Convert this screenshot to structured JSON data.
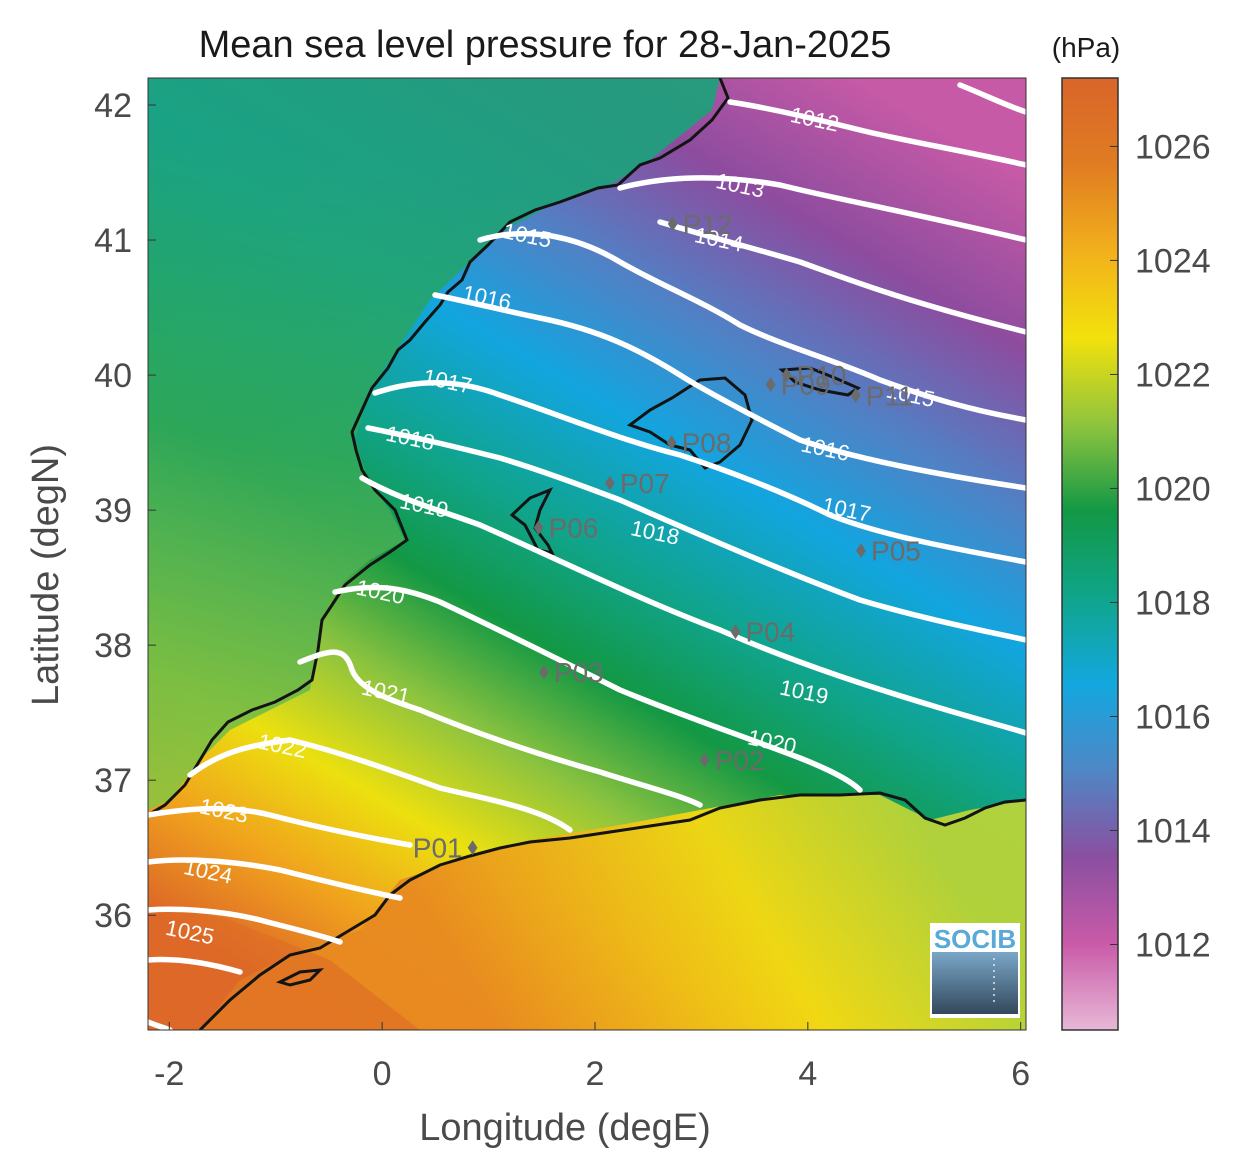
{
  "title": "Mean sea level pressure for 28-Jan-2025",
  "xlabel": "Longitude (degE)",
  "ylabel": "Latitude (degN)",
  "x_ticks": [
    "-2",
    "0",
    "2",
    "4",
    "6"
  ],
  "y_ticks": [
    "42",
    "41",
    "40",
    "39",
    "38",
    "37",
    "36"
  ],
  "colorbar": {
    "unit": "(hPa)",
    "ticks": [
      "1026",
      "1024",
      "1022",
      "1020",
      "1018",
      "1016",
      "1014",
      "1012"
    ],
    "range": [
      1010.5,
      1027.2
    ],
    "colors": [
      "#e8b8d6",
      "#c95aa8",
      "#8a4fa0",
      "#4f87c6",
      "#13a7df",
      "#10a58a",
      "#129845",
      "#8fc43e",
      "#f2e10c",
      "#f2b01c",
      "#e07c22",
      "#d9652a"
    ]
  },
  "logo_text": "SOCIB",
  "chart_data": {
    "type": "contour_map",
    "variable": "Mean sea level pressure",
    "units": "hPa",
    "xlim": [
      -2.2,
      6.05
    ],
    "ylim": [
      35.15,
      42.2
    ],
    "contour_labels": [
      {
        "value": "1012",
        "lon": 4.05,
        "lat": 41.84
      },
      {
        "value": "1013",
        "lon": 3.35,
        "lat": 41.35
      },
      {
        "value": "1014",
        "lon": 3.15,
        "lat": 40.95
      },
      {
        "value": "1015",
        "lon": 1.35,
        "lat": 40.98
      },
      {
        "value": "1015",
        "lon": 4.95,
        "lat": 39.8
      },
      {
        "value": "1016",
        "lon": 0.97,
        "lat": 40.52
      },
      {
        "value": "1016",
        "lon": 4.15,
        "lat": 39.4
      },
      {
        "value": "1017",
        "lon": 0.6,
        "lat": 39.9
      },
      {
        "value": "1017",
        "lon": 4.35,
        "lat": 38.95
      },
      {
        "value": "1018",
        "lon": 0.25,
        "lat": 39.48
      },
      {
        "value": "1018",
        "lon": 2.55,
        "lat": 38.78
      },
      {
        "value": "1019",
        "lon": 0.38,
        "lat": 38.98
      },
      {
        "value": "1019",
        "lon": 3.95,
        "lat": 37.6
      },
      {
        "value": "1020",
        "lon": -0.03,
        "lat": 38.34
      },
      {
        "value": "1020",
        "lon": 3.65,
        "lat": 37.23
      },
      {
        "value": "1021",
        "lon": 0.02,
        "lat": 37.6
      },
      {
        "value": "1022",
        "lon": -0.95,
        "lat": 37.2
      },
      {
        "value": "1023",
        "lon": -1.5,
        "lat": 36.72
      },
      {
        "value": "1024",
        "lon": -1.65,
        "lat": 36.27
      },
      {
        "value": "1025",
        "lon": -1.82,
        "lat": 35.82
      }
    ],
    "points": [
      {
        "name": "P01",
        "lon": 0.85,
        "lat": 36.5
      },
      {
        "name": "P02",
        "lon": 3.03,
        "lat": 37.15
      },
      {
        "name": "P03",
        "lon": 1.52,
        "lat": 37.8
      },
      {
        "name": "P04",
        "lon": 3.32,
        "lat": 38.1
      },
      {
        "name": "P05",
        "lon": 4.5,
        "lat": 38.7
      },
      {
        "name": "P06",
        "lon": 1.47,
        "lat": 38.87
      },
      {
        "name": "P07",
        "lon": 2.14,
        "lat": 39.2
      },
      {
        "name": "P08",
        "lon": 2.72,
        "lat": 39.5
      },
      {
        "name": "P09",
        "lon": 3.65,
        "lat": 39.93
      },
      {
        "name": "P10",
        "lon": 3.8,
        "lat": 40.0
      },
      {
        "name": "P11",
        "lon": 4.45,
        "lat": 39.85
      },
      {
        "name": "P12",
        "lon": 2.73,
        "lat": 41.12
      }
    ]
  }
}
